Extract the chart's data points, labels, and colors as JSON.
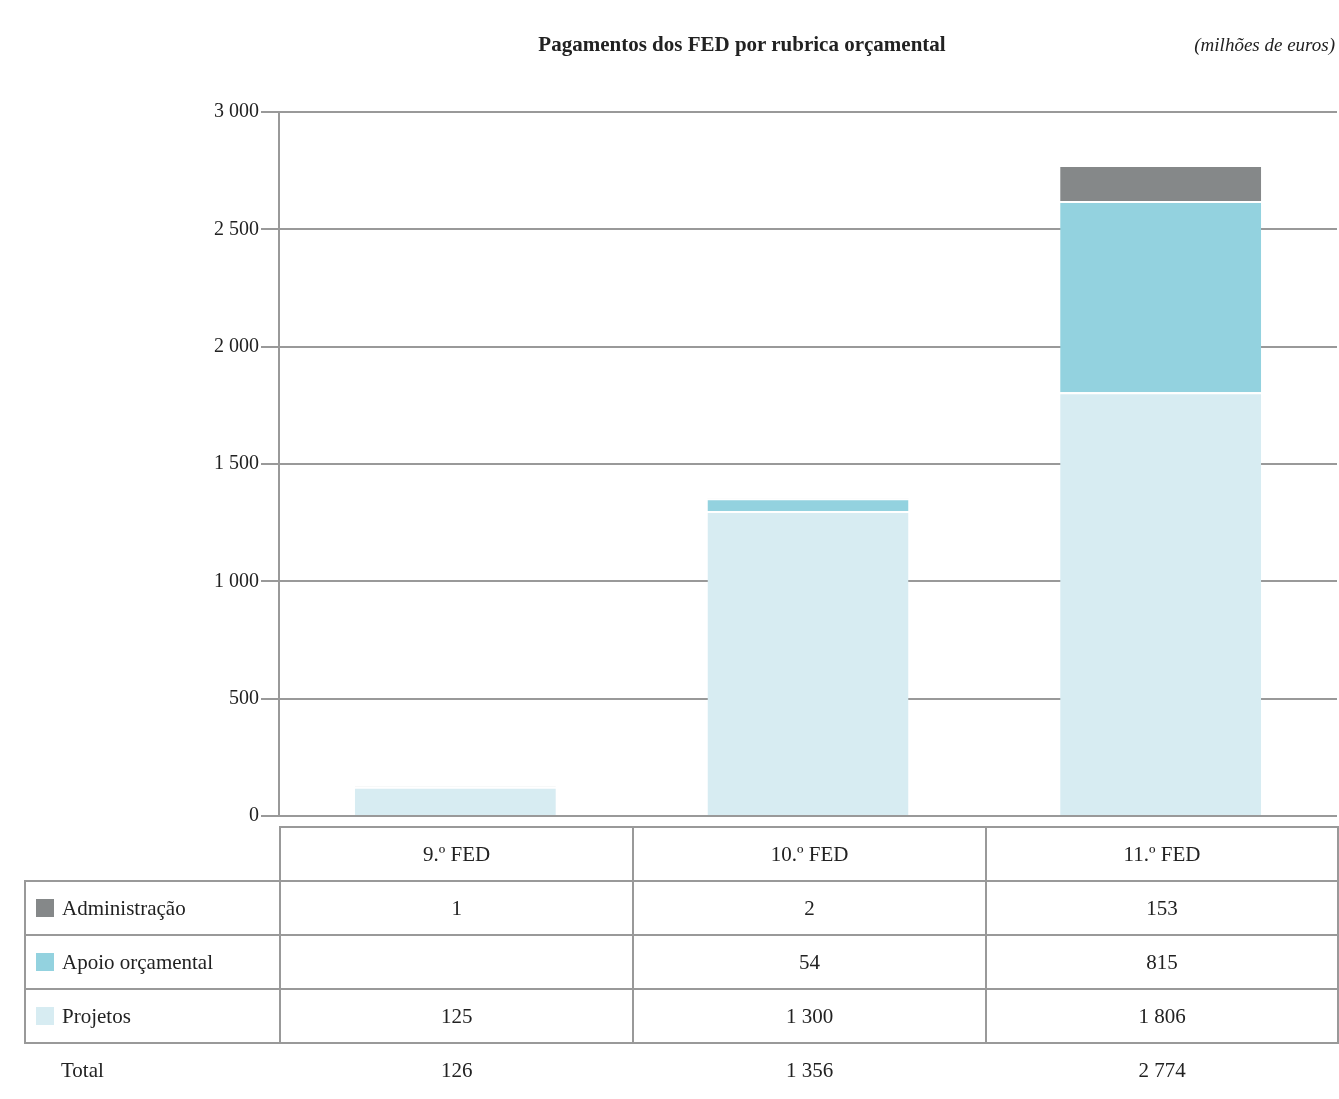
{
  "chart_data": {
    "type": "bar",
    "title": "Pagamentos dos FED por rubrica orçamental",
    "annotations": [
      "(milhões de euros)",
      "Total",
      "126",
      "1 356",
      "2 774"
    ],
    "categories": [
      "9.º FED",
      "10.º FED",
      "11.º FED"
    ],
    "series": [
      {
        "name": "Projetos",
        "color": "#d7ecf2",
        "values": [
          125,
          1300,
          1806
        ],
        "value_labels": [
          "125",
          "1 300",
          "1 806"
        ]
      },
      {
        "name": "Apoio orçamental",
        "color": "#93d2df",
        "values": [
          null,
          54,
          815
        ],
        "value_labels": [
          null,
          "54",
          "815"
        ]
      },
      {
        "name": "Administração",
        "color": "#858889",
        "values": [
          1,
          2,
          153
        ],
        "value_labels": [
          "1",
          "2",
          "153"
        ]
      }
    ],
    "stacked": true,
    "ylim": [
      0,
      3000
    ],
    "yticks": [
      0,
      500,
      {
        "value": 1000,
        "label": "1 000"
      },
      {
        "value": 1500,
        "label": "1 500"
      },
      {
        "value": 2000,
        "label": "2 000"
      },
      {
        "value": 2500,
        "label": "2 500"
      },
      {
        "value": 3000,
        "label": "3 000"
      }
    ],
    "grid": "y",
    "legend": "bottom"
  }
}
